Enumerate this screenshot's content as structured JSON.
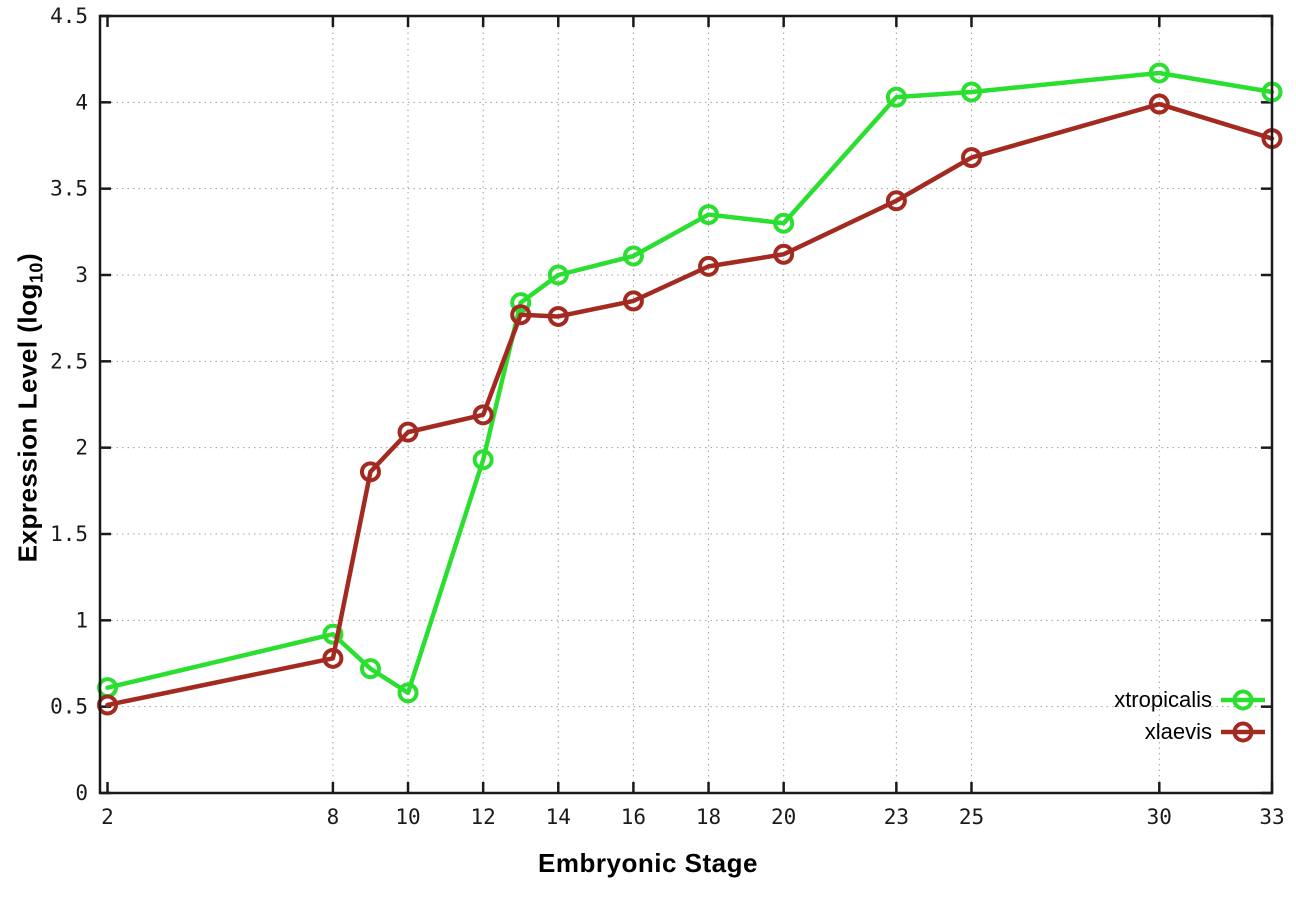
{
  "chart_data": {
    "type": "line",
    "title": "",
    "xlabel": "Embryonic Stage",
    "ylabel": "Expression Level (log10)",
    "ylabel_main": "Expression Level (log",
    "ylabel_sub": "10",
    "ylabel_end": ")",
    "x": [
      2,
      8,
      9,
      10,
      12,
      13,
      14,
      16,
      18,
      20,
      23,
      25,
      30,
      33
    ],
    "series": [
      {
        "name": "xtropicalis",
        "color": "#2bdf30",
        "values": [
          0.61,
          0.92,
          0.72,
          0.58,
          1.93,
          2.84,
          3.0,
          3.11,
          3.35,
          3.3,
          4.03,
          4.06,
          4.17,
          4.06
        ]
      },
      {
        "name": "xlaevis",
        "color": "#a32a20",
        "values": [
          0.51,
          0.78,
          1.86,
          2.09,
          2.19,
          2.77,
          2.76,
          2.85,
          3.05,
          3.12,
          3.43,
          3.68,
          3.99,
          3.79
        ]
      }
    ],
    "x_ticks": [
      2,
      8,
      10,
      12,
      14,
      16,
      18,
      20,
      23,
      25,
      30,
      33
    ],
    "x_tick_labels": [
      "2",
      "8",
      "10",
      "12",
      "14",
      "16",
      "18",
      "20",
      "23",
      "25",
      "30",
      "33"
    ],
    "y_ticks": [
      0,
      0.5,
      1,
      1.5,
      2,
      2.5,
      3,
      3.5,
      4,
      4.5
    ],
    "y_tick_labels": [
      "0",
      "0.5",
      "1",
      "1.5",
      "2",
      "2.5",
      "3",
      "3.5",
      "4",
      "4.5"
    ],
    "xlim": [
      1.8,
      33
    ],
    "ylim": [
      0,
      4.5
    ],
    "grid": "dotted",
    "legend_position": "bottom-right-inside",
    "marker": "open-circle",
    "colors": {
      "background": "#ffffff",
      "border": "#1a1a1a",
      "grid": "#a0a0a0",
      "tick_text": "#1a1a1a"
    }
  }
}
